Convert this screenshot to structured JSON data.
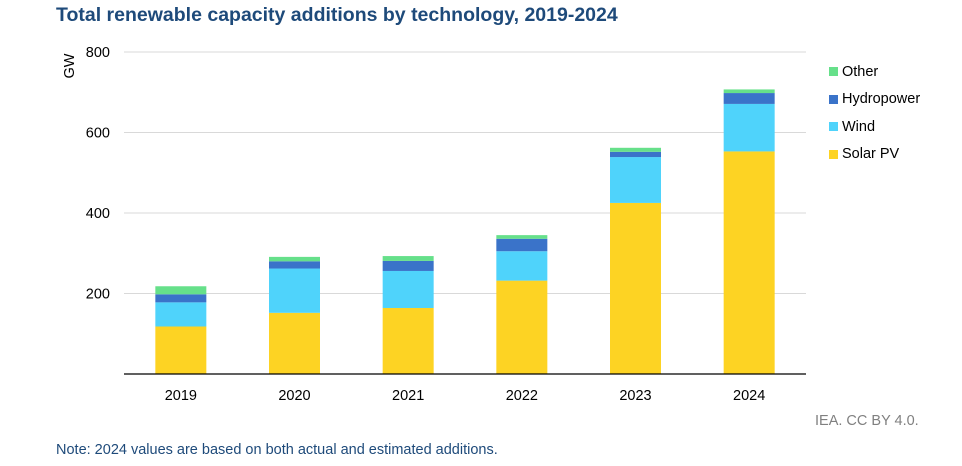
{
  "header": {
    "title": "Total renewable capacity additions by technology, 2019-2024"
  },
  "chart_data": {
    "type": "bar",
    "stacked": true,
    "title": "Total renewable capacity additions by technology, 2019-2024",
    "xlabel": "",
    "ylabel": "GW",
    "ylim": [
      0,
      800
    ],
    "yticks": [
      "200",
      "400",
      "600",
      "800"
    ],
    "grid": true,
    "legend_position": "right",
    "categories": [
      "2019",
      "2020",
      "2021",
      "2022",
      "2023",
      "2024"
    ],
    "series": [
      {
        "name": "Solar PV",
        "color": "#fdd323",
        "values": [
          118,
          152,
          164,
          232,
          425,
          553
        ]
      },
      {
        "name": "Wind",
        "color": "#4fd3fb",
        "values": [
          60,
          110,
          92,
          73,
          114,
          118
        ]
      },
      {
        "name": "Hydropower",
        "color": "#3a73c9",
        "values": [
          20,
          18,
          25,
          31,
          13,
          27
        ]
      },
      {
        "name": "Other",
        "color": "#66e08a",
        "values": [
          20,
          11,
          12,
          9,
          10,
          9
        ]
      }
    ]
  },
  "legend": {
    "items": [
      {
        "label": "Other",
        "color": "#66e08a"
      },
      {
        "label": "Hydropower",
        "color": "#3a73c9"
      },
      {
        "label": "Wind",
        "color": "#4fd3fb"
      },
      {
        "label": "Solar PV",
        "color": "#fdd323"
      }
    ]
  },
  "footer": {
    "credit": "IEA. CC BY 4.0.",
    "note": "Note: 2024 values are based on both actual and estimated additions."
  }
}
